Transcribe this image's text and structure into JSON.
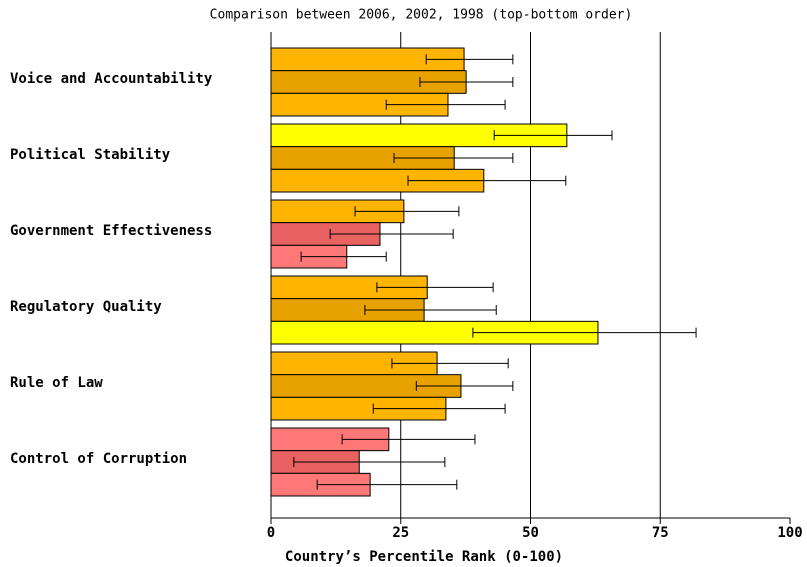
{
  "chart_data": {
    "type": "bar",
    "orientation": "horizontal",
    "title": "Comparison between 2006, 2002, 1998 (top-bottom order)",
    "x_label": "Country’s Percentile Rank (0-100)",
    "categories": [
      "Voice and Accountability",
      "Political Stability",
      "Government Effectiveness",
      "Regulatory Quality",
      "Rule of Law",
      "Control of Corruption"
    ],
    "series": [
      {
        "values": [
          37.2,
          57.0,
          25.6,
          30.1,
          32.0,
          22.7
        ],
        "ci_low": [
          29.9,
          43.0,
          16.2,
          20.4,
          23.3,
          13.7
        ],
        "ci_high": [
          46.6,
          65.7,
          36.2,
          42.8,
          45.7,
          39.3
        ],
        "colors": [
          "#ffb400",
          "#ffff00",
          "#ffb400",
          "#ffb400",
          "#ffb400",
          "#ff7878"
        ]
      },
      {
        "values": [
          37.6,
          35.3,
          21.0,
          29.5,
          36.6,
          17.0
        ],
        "ci_low": [
          28.7,
          23.7,
          11.4,
          18.1,
          28.0,
          4.4
        ],
        "ci_high": [
          46.6,
          46.6,
          35.1,
          43.4,
          46.6,
          33.5
        ],
        "colors": [
          "#e8a200",
          "#e8a200",
          "#e86262",
          "#e8a200",
          "#e8a200",
          "#e86262"
        ]
      },
      {
        "values": [
          34.1,
          41.0,
          14.6,
          63.0,
          33.7,
          19.1
        ],
        "ci_low": [
          22.2,
          26.4,
          5.8,
          38.9,
          19.7,
          8.9
        ],
        "ci_high": [
          45.1,
          56.8,
          22.2,
          81.9,
          45.1,
          35.8
        ],
        "colors": [
          "#ffb400",
          "#ffb400",
          "#ff7878",
          "#ffff00",
          "#ffb400",
          "#ff7878"
        ]
      }
    ],
    "xlim": [
      0,
      100
    ],
    "xticks": [
      0,
      25,
      50,
      75,
      100
    ],
    "grid": true
  }
}
